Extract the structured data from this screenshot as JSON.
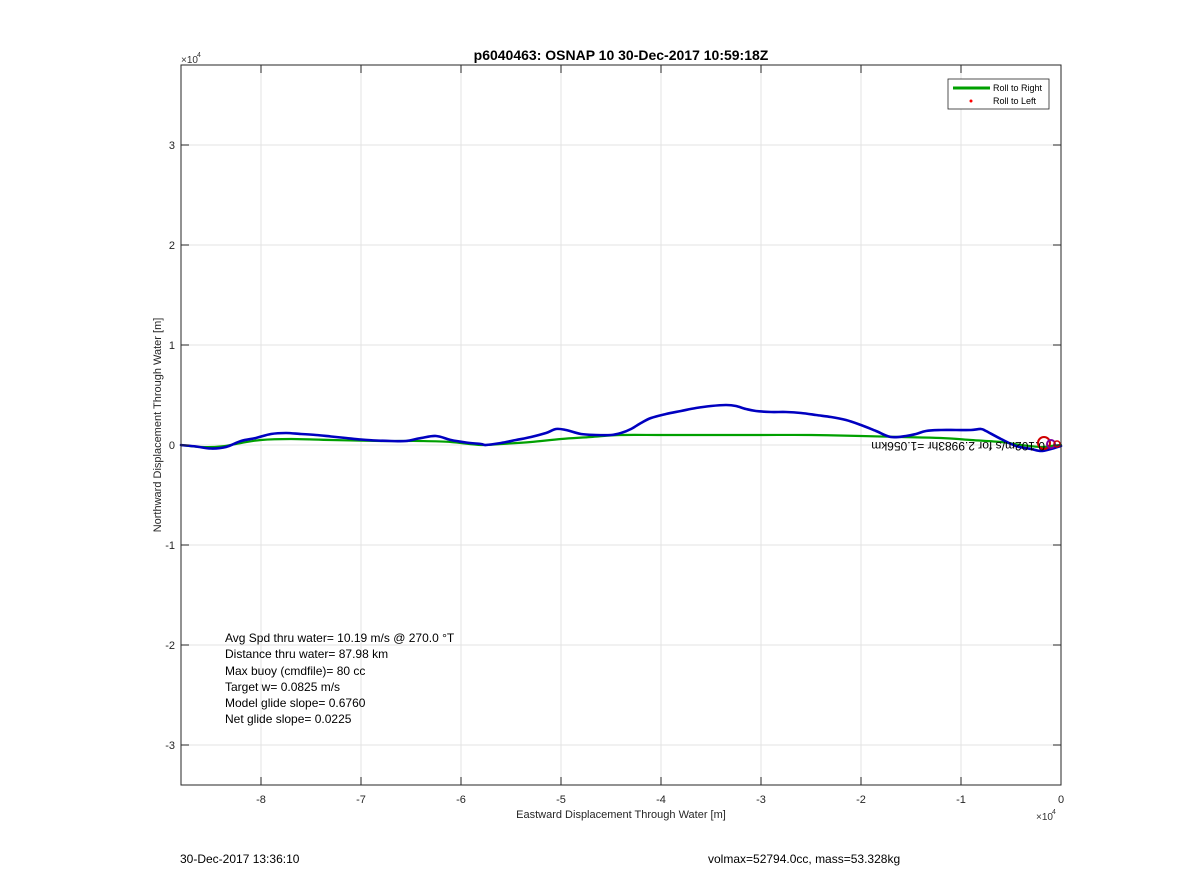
{
  "chart_data": {
    "type": "line",
    "title": "p6040463: OSNAP 10 30-Dec-2017 10:59:18Z",
    "xlabel": "Eastward Displacement Through Water [m]",
    "ylabel": "Northward Displacement Through Water [m]",
    "xlim": [
      -88000,
      0
    ],
    "ylim": [
      -34000,
      38000
    ],
    "axis_multiplier_x": "×10",
    "axis_multiplier_x_exp": "4",
    "axis_multiplier_y": "×10",
    "axis_multiplier_y_exp": "4",
    "x_ticks": [
      {
        "value": -80000,
        "label": "-8"
      },
      {
        "value": -70000,
        "label": "-7"
      },
      {
        "value": -60000,
        "label": "-6"
      },
      {
        "value": -50000,
        "label": "-5"
      },
      {
        "value": -40000,
        "label": "-4"
      },
      {
        "value": -30000,
        "label": "-3"
      },
      {
        "value": -20000,
        "label": "-2"
      },
      {
        "value": -10000,
        "label": "-1"
      },
      {
        "value": 0,
        "label": "0"
      }
    ],
    "y_ticks": [
      {
        "value": -30000,
        "label": "-3"
      },
      {
        "value": -20000,
        "label": "-2"
      },
      {
        "value": -10000,
        "label": "-1"
      },
      {
        "value": 0,
        "label": "0"
      },
      {
        "value": 10000,
        "label": "1"
      },
      {
        "value": 20000,
        "label": "2"
      },
      {
        "value": 30000,
        "label": "3"
      }
    ],
    "grid": true,
    "legend_placement": "top-right",
    "legend": [
      {
        "label": "Roll to Right",
        "color": "#00a000",
        "style": "line"
      },
      {
        "label": "Roll to Left",
        "color": "#ff0000",
        "style": "dot"
      }
    ],
    "series": [
      {
        "color": "#0000c0",
        "x": [
          -88000,
          -86500,
          -85000,
          -83500,
          -82000,
          -80500,
          -79000,
          -77500,
          -76000,
          -74500,
          -73000,
          -71500,
          -70000,
          -68500,
          -67000,
          -65500,
          -64000,
          -62500,
          -61000,
          -59500,
          -58000,
          -57500,
          -56000,
          -54500,
          -53000,
          -51500,
          -50500,
          -49500,
          -48000,
          -46500,
          -45000,
          -44000,
          -43000,
          -42000,
          -41000,
          -39500,
          -38000,
          -36500,
          -35000,
          -33500,
          -32500,
          -31500,
          -30500,
          -29000,
          -27500,
          -26000,
          -24500,
          -23000,
          -21500,
          -20000,
          -18500,
          -17000,
          -15500,
          -14500,
          -13500,
          -12000,
          -10500,
          -9000,
          -8000,
          -7500,
          -6000,
          -4500,
          -3000,
          -2000,
          -1000,
          0
        ],
        "y": [
          0,
          -150,
          -350,
          -200,
          400,
          700,
          1100,
          1200,
          1100,
          1000,
          850,
          700,
          550,
          450,
          400,
          400,
          700,
          900,
          500,
          250,
          100,
          0,
          200,
          500,
          800,
          1200,
          1600,
          1500,
          1100,
          1000,
          1000,
          1200,
          1600,
          2200,
          2700,
          3100,
          3400,
          3700,
          3900,
          4000,
          3900,
          3600,
          3400,
          3300,
          3300,
          3200,
          3000,
          2800,
          2500,
          2000,
          1400,
          800,
          900,
          1100,
          1400,
          1500,
          1500,
          1500,
          1600,
          1400,
          600,
          -100,
          -400,
          -600,
          -400,
          -100
        ]
      },
      {
        "color": "#00a000",
        "x": [
          -88000,
          -86000,
          -84000,
          -82000,
          -80000,
          -77000,
          -73000,
          -68000,
          -64000,
          -61000,
          -58000,
          -56000,
          -53000,
          -50000,
          -47000,
          -44000,
          -40000,
          -35000,
          -30000,
          -25000,
          -20000,
          -16000,
          -12000,
          -9000,
          -6000,
          -4000,
          -2000,
          -1000,
          0
        ],
        "y": [
          0,
          -200,
          -150,
          200,
          500,
          600,
          500,
          400,
          400,
          300,
          0,
          100,
          300,
          600,
          800,
          1000,
          1000,
          1000,
          1000,
          1000,
          900,
          800,
          700,
          500,
          300,
          0,
          -200,
          -100,
          0
        ]
      }
    ],
    "annotations": [
      {
        "text": "Avg Spd thru water= 10.19 m/s @ 270.0 °T"
      },
      {
        "text": "Distance thru water= 87.98 km"
      },
      {
        "text": "Max buoy (cmdfile)= 80 cc"
      },
      {
        "text": "Target w= 0.0825 m/s"
      },
      {
        "text": "Model glide slope= 0.6760"
      },
      {
        "text": "Net glide slope= 0.0225"
      }
    ],
    "rotated_label": "0.102m/s for 2.9983hr =1.056km"
  },
  "footer": {
    "timestamp": "30-Dec-2017 13:36:10",
    "volmax": "volmax=52794.0cc, mass=53.328kg"
  }
}
